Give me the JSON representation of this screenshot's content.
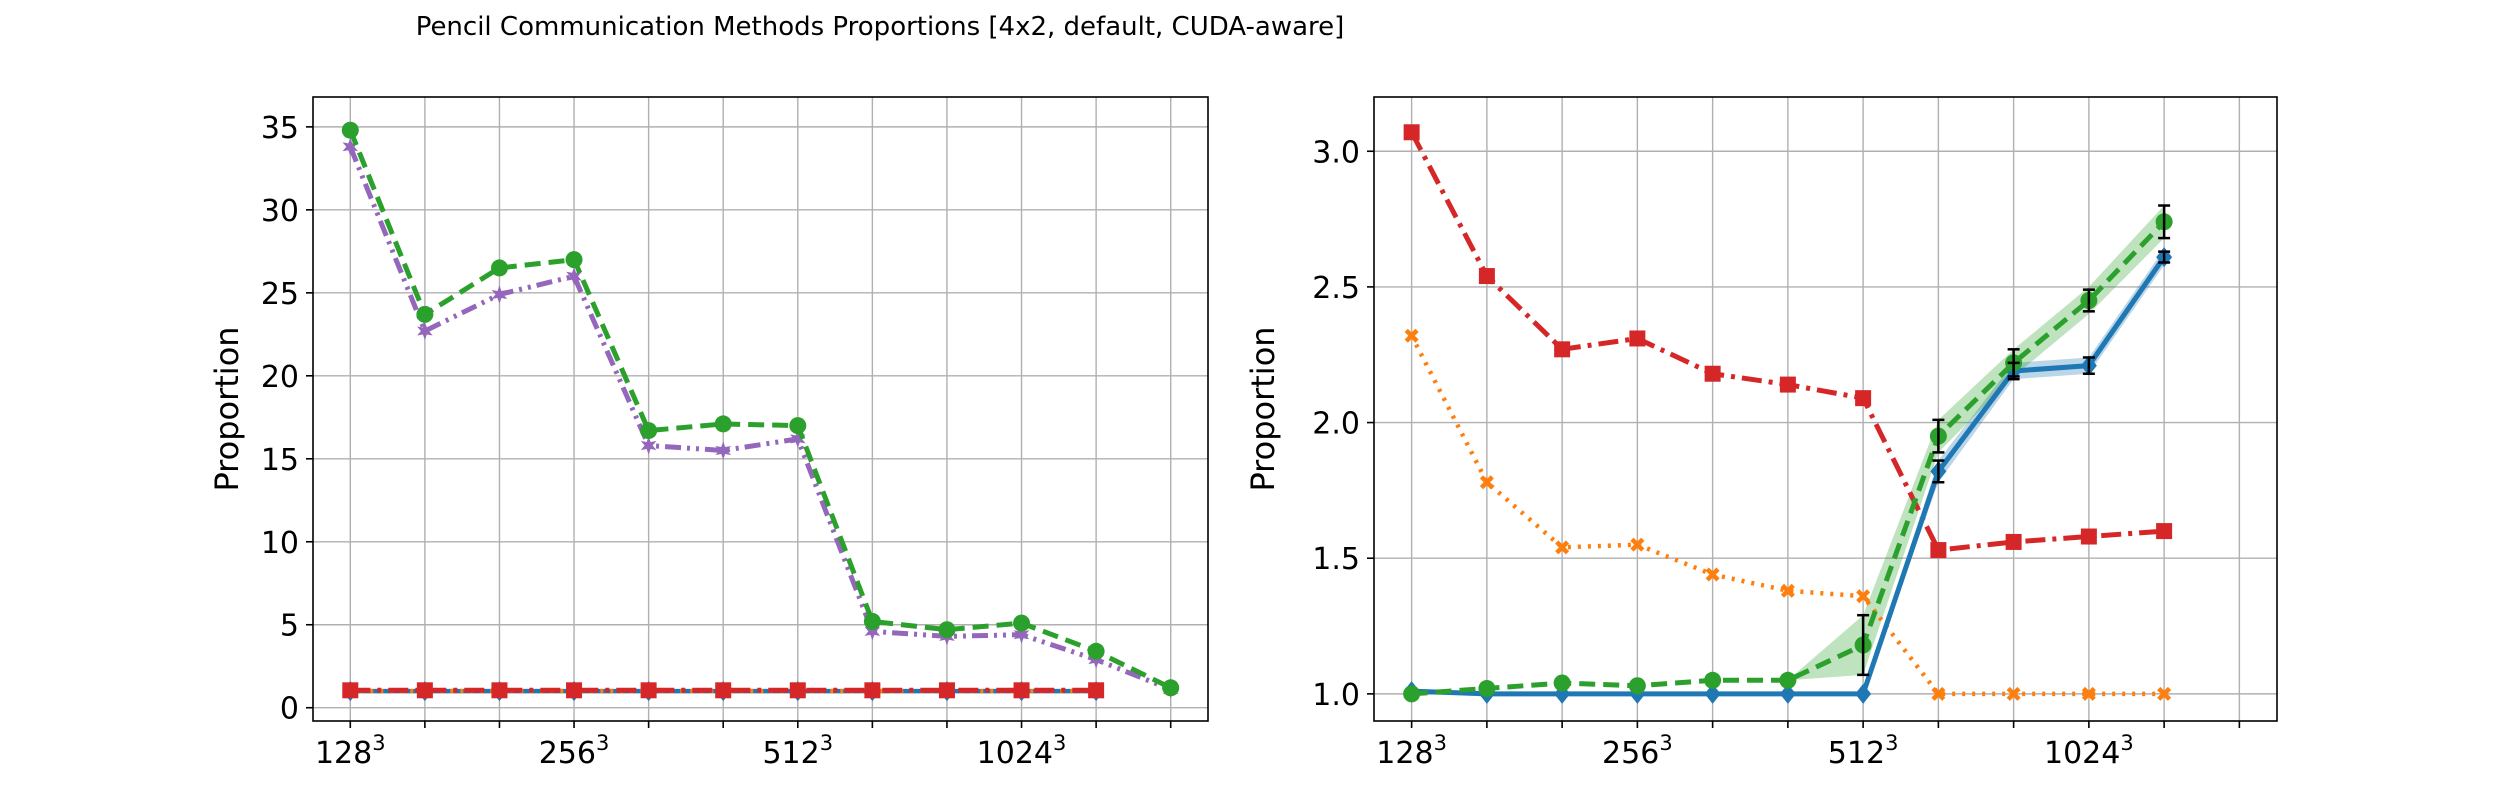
{
  "figure": {
    "title": "Pencil Communication Methods Proportions [4x2, default, CUDA-aware]"
  },
  "colors": {
    "blue": "#1f77b4",
    "orange": "#ff7f0e",
    "green": "#2ca02c",
    "red": "#d62728",
    "purple": "#9467bd",
    "grid": "#b0b0b0",
    "errorbar": "#000000"
  },
  "chart_data": [
    {
      "type": "line",
      "title": "",
      "xlabel": "",
      "ylabel": "Proportion",
      "grid": true,
      "x": [
        0,
        1,
        2,
        3,
        4,
        5,
        6,
        7,
        8,
        9,
        10,
        11
      ],
      "xlim": [
        -0.5,
        11.5
      ],
      "xticks": [
        {
          "x": 0,
          "base": "128",
          "exp": "3"
        },
        {
          "x": 3,
          "base": "256",
          "exp": "3"
        },
        {
          "x": 6,
          "base": "512",
          "exp": "3"
        },
        {
          "x": 9,
          "base": "1024",
          "exp": "3"
        }
      ],
      "ylim": [
        -0.8,
        36.8
      ],
      "yticks": [
        {
          "v": 0,
          "label": "0"
        },
        {
          "v": 5,
          "label": "5"
        },
        {
          "v": 10,
          "label": "10"
        },
        {
          "v": 15,
          "label": "15"
        },
        {
          "v": 20,
          "label": "20"
        },
        {
          "v": 25,
          "label": "25"
        },
        {
          "v": 30,
          "label": "30"
        },
        {
          "v": 35,
          "label": "35"
        }
      ],
      "series": [
        {
          "color": "blue",
          "dash": "",
          "marker": "diamond",
          "width": 4.5,
          "values": [
            1.0,
            1.0,
            1.0,
            1.0,
            1.0,
            1.0,
            1.0,
            1.0,
            1.0,
            1.0,
            1.0,
            null
          ]
        },
        {
          "color": "orange",
          "dash": "3 7",
          "marker": "x",
          "width": 4.5,
          "values": [
            1.0,
            1.0,
            1.0,
            1.0,
            1.0,
            1.0,
            1.0,
            1.0,
            1.0,
            1.0,
            1.0,
            null
          ]
        },
        {
          "color": "purple",
          "dash": "16 6 3 6 3 6",
          "marker": "star",
          "width": 5,
          "values": [
            33.8,
            22.7,
            24.9,
            26.0,
            15.8,
            15.5,
            16.2,
            4.6,
            4.3,
            4.4,
            2.9,
            1.1
          ]
        },
        {
          "color": "green",
          "dash": "16 8",
          "marker": "circle",
          "width": 5,
          "values": [
            34.8,
            23.7,
            26.5,
            27.0,
            16.7,
            17.1,
            17.0,
            5.2,
            4.7,
            5.1,
            3.4,
            1.2
          ]
        },
        {
          "color": "red",
          "dash": "20 7 4 7",
          "marker": "square",
          "width": 5,
          "values": [
            1.05,
            1.05,
            1.05,
            1.05,
            1.05,
            1.05,
            1.05,
            1.05,
            1.05,
            1.05,
            1.05,
            null
          ]
        }
      ]
    },
    {
      "type": "line",
      "title": "",
      "xlabel": "",
      "ylabel": "Proportion",
      "grid": true,
      "x": [
        0,
        1,
        2,
        3,
        4,
        5,
        6,
        7,
        8,
        9,
        10,
        11
      ],
      "xlim": [
        -0.5,
        11.5
      ],
      "xticks": [
        {
          "x": 0,
          "base": "128",
          "exp": "3"
        },
        {
          "x": 3,
          "base": "256",
          "exp": "3"
        },
        {
          "x": 6,
          "base": "512",
          "exp": "3"
        },
        {
          "x": 9,
          "base": "1024",
          "exp": "3"
        }
      ],
      "ylim": [
        0.9,
        3.2
      ],
      "yticks": [
        {
          "v": 1.0,
          "label": "1.0"
        },
        {
          "v": 1.5,
          "label": "1.5"
        },
        {
          "v": 2.0,
          "label": "2.0"
        },
        {
          "v": 2.5,
          "label": "2.5"
        },
        {
          "v": 3.0,
          "label": "3.0"
        }
      ],
      "series": [
        {
          "color": "red",
          "dash": "20 7 4 7",
          "marker": "square",
          "width": 5,
          "values": [
            3.07,
            2.54,
            2.27,
            2.31,
            2.18,
            2.14,
            2.09,
            1.53,
            1.56,
            1.58,
            1.6,
            null
          ]
        },
        {
          "color": "orange",
          "dash": "3 7",
          "marker": "x",
          "width": 4.5,
          "values": [
            2.32,
            1.78,
            1.54,
            1.55,
            1.44,
            1.38,
            1.36,
            1.0,
            1.0,
            1.0,
            1.0,
            null
          ]
        },
        {
          "color": "blue",
          "dash": "",
          "marker": "diamond",
          "width": 5,
          "values": [
            1.01,
            1.0,
            1.0,
            1.0,
            1.0,
            1.0,
            1.0,
            1.82,
            2.19,
            2.21,
            2.61,
            null
          ],
          "band": [
            0.0,
            0.0,
            0.0,
            0.0,
            0.0,
            0.0,
            0.0,
            0.04,
            0.03,
            0.03,
            0.03,
            null
          ],
          "errors": [
            0,
            0,
            0,
            0,
            0,
            0,
            0,
            0.04,
            0.03,
            0.03,
            0.02,
            null
          ]
        },
        {
          "color": "green",
          "dash": "16 8",
          "marker": "circle",
          "width": 5,
          "values": [
            1.0,
            1.02,
            1.04,
            1.03,
            1.05,
            1.05,
            1.18,
            1.95,
            2.22,
            2.45,
            2.74,
            null
          ],
          "band": [
            0.0,
            0.0,
            0.0,
            0.0,
            0.0,
            0.0,
            0.11,
            0.06,
            0.05,
            0.05,
            0.06,
            null
          ],
          "errors": [
            0,
            0,
            0,
            0,
            0,
            0,
            0.11,
            0.06,
            0.05,
            0.04,
            0.06,
            null
          ]
        }
      ]
    }
  ]
}
